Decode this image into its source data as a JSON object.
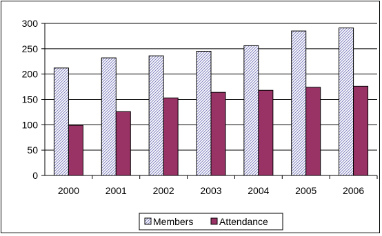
{
  "chart_data": {
    "type": "bar",
    "categories": [
      "2000",
      "2001",
      "2002",
      "2003",
      "2004",
      "2005",
      "2006"
    ],
    "series": [
      {
        "name": "Members",
        "values": [
          212,
          232,
          236,
          245,
          256,
          285,
          291
        ],
        "color": "#CCCCFF",
        "pattern": "diagonal-hatch"
      },
      {
        "name": "Attendance",
        "values": [
          99,
          126,
          153,
          164,
          168,
          174,
          176
        ],
        "color": "#993366",
        "pattern": "solid"
      }
    ],
    "title": "",
    "xlabel": "",
    "ylabel": "",
    "ylim": [
      0,
      300
    ],
    "yticks": [
      "0",
      "50",
      "100",
      "150",
      "200",
      "250",
      "300"
    ],
    "grid": "horizontal",
    "legend": "bottom"
  }
}
